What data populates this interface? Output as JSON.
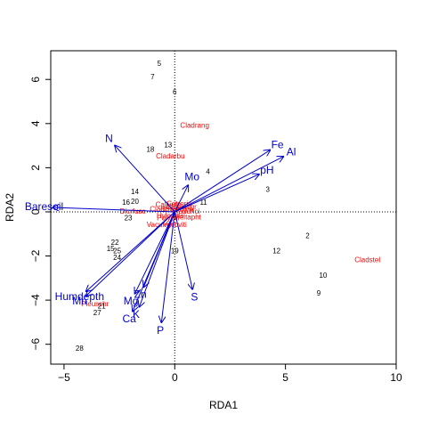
{
  "chart_data": {
    "type": "scatter",
    "xlabel": "RDA1",
    "ylabel": "RDA2",
    "xlim": [
      -5.6,
      10.0
    ],
    "ylim": [
      -6.9,
      7.3
    ],
    "x_ticks": [
      -5,
      0,
      5,
      10
    ],
    "y_ticks": [
      -6,
      -4,
      -2,
      0,
      2,
      4,
      6
    ],
    "reference_lines": {
      "x": 0,
      "y": 0,
      "style": "dotted"
    },
    "grid": false,
    "colors": {
      "sites": "#000000",
      "species": "#ff0000",
      "arrows": "#0000cc"
    },
    "sites": [
      {
        "label": "5",
        "x": -0.7,
        "y": 6.7
      },
      {
        "label": "7",
        "x": -1.0,
        "y": 6.1
      },
      {
        "label": "6",
        "x": 0.0,
        "y": 5.4
      },
      {
        "label": "13",
        "x": -0.3,
        "y": 3.0
      },
      {
        "label": "18",
        "x": -1.1,
        "y": 2.8
      },
      {
        "label": "4",
        "x": 1.5,
        "y": 1.8
      },
      {
        "label": "3",
        "x": 4.2,
        "y": 1.0
      },
      {
        "label": "14",
        "x": -1.8,
        "y": 0.9
      },
      {
        "label": "20",
        "x": -1.8,
        "y": 0.45
      },
      {
        "label": "16",
        "x": -2.2,
        "y": 0.4
      },
      {
        "label": "11",
        "x": 1.3,
        "y": 0.4
      },
      {
        "label": "23",
        "x": -2.1,
        "y": -0.3
      },
      {
        "label": "2",
        "x": 6.0,
        "y": -1.1
      },
      {
        "label": "22",
        "x": -2.7,
        "y": -1.4
      },
      {
        "label": "15",
        "x": -2.9,
        "y": -1.7
      },
      {
        "label": "25",
        "x": -2.6,
        "y": -1.8
      },
      {
        "label": "12",
        "x": 4.6,
        "y": -1.8
      },
      {
        "label": "19",
        "x": 0.0,
        "y": -1.8
      },
      {
        "label": "24",
        "x": -2.6,
        "y": -2.1
      },
      {
        "label": "10",
        "x": 6.7,
        "y": -2.9
      },
      {
        "label": "9",
        "x": 6.5,
        "y": -3.7
      },
      {
        "label": "21",
        "x": -3.3,
        "y": -4.3
      },
      {
        "label": "27",
        "x": -3.5,
        "y": -4.6
      },
      {
        "label": "28",
        "x": -4.3,
        "y": -6.2
      }
    ],
    "species": [
      {
        "label": "Cladrang",
        "x": 0.9,
        "y": 3.9
      },
      {
        "label": "Cladarbu",
        "x": -0.2,
        "y": 2.5
      },
      {
        "label": "Cladstel",
        "x": 8.7,
        "y": -2.2
      },
      {
        "label": "Vaccviti",
        "x": 0.0,
        "y": -0.6
      },
      {
        "label": "Vacumyrt",
        "x": -0.6,
        "y": -0.6
      },
      {
        "label": "Dicrfusc",
        "x": -1.9,
        "y": 0.0
      },
      {
        "label": "Pleuschr",
        "x": -3.6,
        "y": -4.2
      },
      {
        "label": "Callvulg",
        "x": -0.3,
        "y": 0.3
      },
      {
        "label": "Empenigr",
        "x": 0.3,
        "y": 0.2
      },
      {
        "label": "Hylosple",
        "x": -0.2,
        "y": -0.2
      },
      {
        "label": "Cladunci",
        "x": 0.5,
        "y": 0.0
      },
      {
        "label": "Cetreric",
        "x": 0.2,
        "y": 0.35
      },
      {
        "label": "Cladchlo",
        "x": -0.5,
        "y": 0.1
      },
      {
        "label": "Peltapht",
        "x": 0.6,
        "y": -0.25
      },
      {
        "label": "Polypili",
        "x": -0.3,
        "y": -0.3
      },
      {
        "label": "Rhodtome",
        "x": 0.1,
        "y": 0.1
      }
    ],
    "arrows": [
      {
        "label": "N",
        "x": -2.7,
        "y": 3.0
      },
      {
        "label": "Fe",
        "x": 4.3,
        "y": 2.8
      },
      {
        "label": "Al",
        "x": 4.9,
        "y": 2.5
      },
      {
        "label": "pH",
        "x": 3.8,
        "y": 1.7
      },
      {
        "label": "Mo",
        "x": 0.6,
        "y": 1.2
      },
      {
        "label": "Baresoil",
        "x": -5.5,
        "y": 0.2
      },
      {
        "label": "Humdepth",
        "x": -4.0,
        "y": -3.6
      },
      {
        "label": "Mn",
        "x": -4.0,
        "y": -3.8
      },
      {
        "label": "Mg",
        "x": -1.8,
        "y": -3.7
      },
      {
        "label": "Zn",
        "x": -1.4,
        "y": -3.4
      },
      {
        "label": "K",
        "x": -1.6,
        "y": -4.3
      },
      {
        "label": "Ca",
        "x": -1.9,
        "y": -4.5
      },
      {
        "label": "S",
        "x": 0.8,
        "y": -3.5
      },
      {
        "label": "P",
        "x": -0.6,
        "y": -5.0
      }
    ]
  }
}
